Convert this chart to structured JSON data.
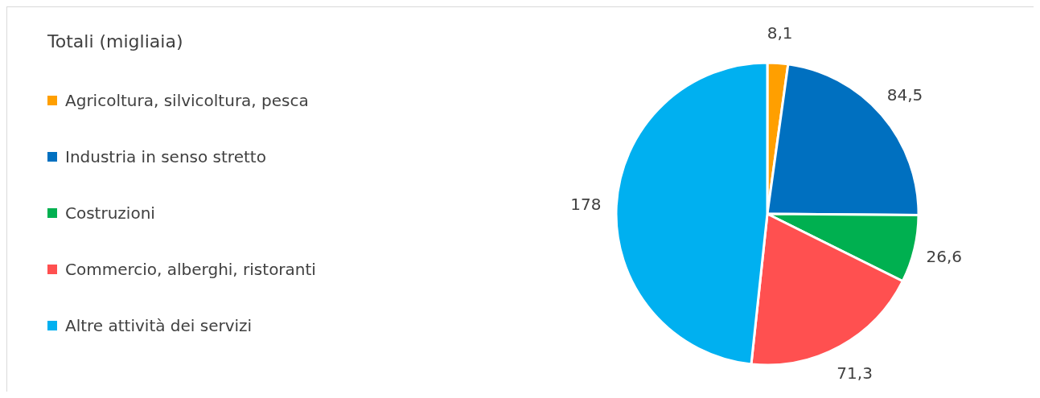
{
  "chart_data": {
    "type": "pie",
    "legend_title": "Totali (migliaia)",
    "categories": [
      "Agricoltura, silvicoltura, pesca",
      "Industria in senso stretto",
      "Costruzioni",
      "Commercio, alberghi, ristoranti",
      "Altre attività dei servizi"
    ],
    "values": [
      8.1,
      84.5,
      26.6,
      71.3,
      178
    ],
    "value_labels": [
      "8,1",
      "84,5",
      "26,6",
      "71,3",
      "178"
    ],
    "colors": [
      "#ff9f00",
      "#0070c0",
      "#00b050",
      "#ff5050",
      "#00b0f0"
    ],
    "legend": "left"
  }
}
